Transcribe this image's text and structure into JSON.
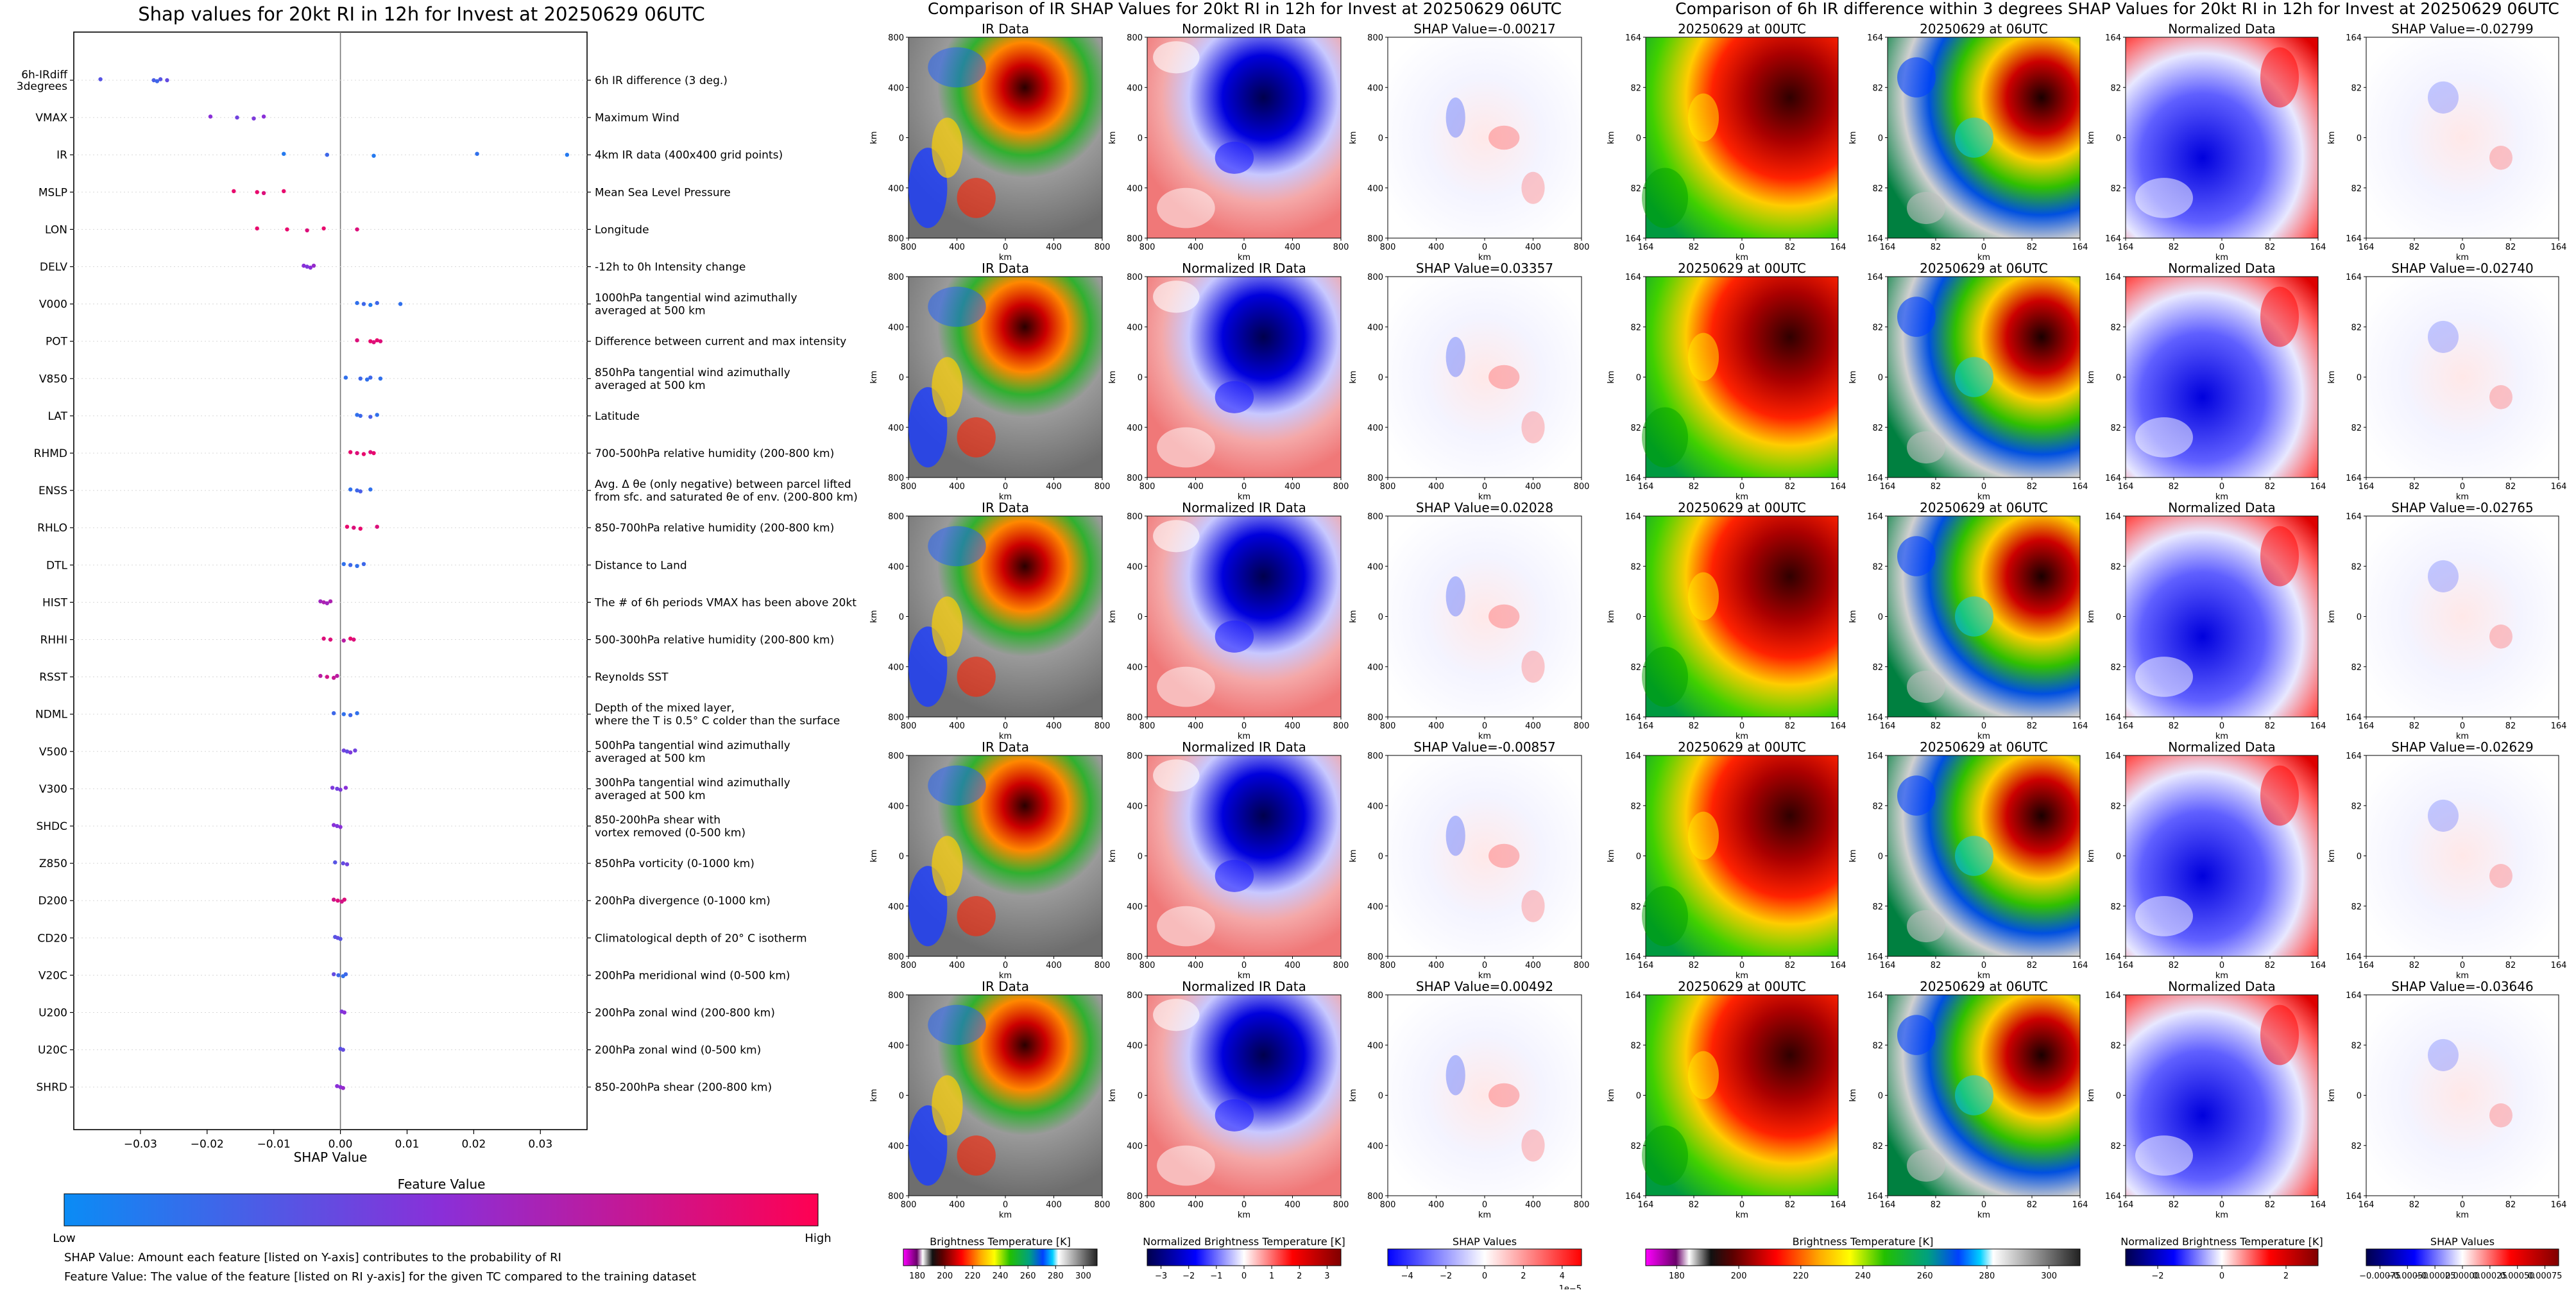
{
  "summary_panel": {
    "title": "Shap values for 20kt RI in 12h for Invest at 20250629 06UTC",
    "colorbar_title": "Feature Value",
    "colorbar_low": "Low",
    "colorbar_high": "High",
    "footnote_1": "SHAP Value: Amount each feature [listed on Y-axis] contributes to the probability of RI",
    "footnote_2": "Feature Value: The value of the feature [listed on RI y-axis] for the given TC compared to the training dataset",
    "colors": {
      "low": "#0a8cf5",
      "mid": "#8a2fd8",
      "high": "#ff0052"
    }
  },
  "ir_section": {
    "title": "Comparison of IR SHAP Values for 20kt RI in 12h for Invest at 20250629 06UTC",
    "col_titles": [
      "IR Data",
      "Normalized IR Data"
    ],
    "shap_titles": [
      "SHAP Value=-0.00217",
      "SHAP Value=0.03357",
      "SHAP Value=0.02028",
      "SHAP Value=-0.00857",
      "SHAP Value=0.00492"
    ],
    "axis_label": "km",
    "x_ticks": [
      "800",
      "400",
      "0",
      "400",
      "800"
    ],
    "y_ticks": [
      "800",
      "400",
      "0",
      "400",
      "800"
    ],
    "colorbars": [
      {
        "label": "Brightness Temperature [K]",
        "ticks": [
          "180",
          "200",
          "220",
          "240",
          "260",
          "280",
          "300"
        ]
      },
      {
        "label": "Normalized Brightness Temperature [K]",
        "ticks": [
          "−3",
          "−2",
          "−1",
          "0",
          "1",
          "2",
          "3"
        ]
      },
      {
        "label": "SHAP Values",
        "ticks": [
          "−4",
          "−2",
          "0",
          "2",
          "4"
        ],
        "exponent": "1e−5"
      }
    ]
  },
  "diff_section": {
    "title": "Comparison of 6h IR difference within 3 degrees SHAP Values for 20kt RI in 12h for Invest at 20250629 06UTC",
    "col_titles": [
      "20250629 at 00UTC",
      "20250629 at 06UTC",
      "Normalized Data"
    ],
    "shap_titles": [
      "SHAP Value=-0.02799",
      "SHAP Value=-0.02740",
      "SHAP Value=-0.02765",
      "SHAP Value=-0.02629",
      "SHAP Value=-0.03646"
    ],
    "axis_label": "km",
    "x_ticks": [
      "164",
      "82",
      "0",
      "82",
      "164"
    ],
    "y_ticks": [
      "164",
      "82",
      "0",
      "82",
      "164"
    ],
    "colorbars": [
      {
        "label": "Brightness Temperature [K]",
        "ticks": [
          "180",
          "200",
          "220",
          "240",
          "260",
          "280",
          "300"
        ]
      },
      {
        "label": "Normalized Brightness Temperature [K]",
        "ticks": [
          "−2",
          "0",
          "2"
        ]
      },
      {
        "label": "SHAP Values",
        "ticks": [
          "−0.00075",
          "−0.00050",
          "−0.00025",
          "0.00000",
          "0.00025",
          "0.00050",
          "0.00075"
        ]
      }
    ]
  },
  "chart_data": [
    {
      "type": "scatter",
      "title": "Shap values for 20kt RI in 12h for Invest at 20250629 06UTC",
      "xlabel": "SHAP Value",
      "ylabel": "",
      "xlim": [
        -0.04,
        0.037
      ],
      "x_ticks": [
        "−0.03",
        "−0.02",
        "−0.01",
        "0.00",
        "0.01",
        "0.02",
        "0.03"
      ],
      "x_tick_values": [
        -0.03,
        -0.02,
        -0.01,
        0.0,
        0.01,
        0.02,
        0.03
      ],
      "features": [
        {
          "name": "6h-IRdiff\n3degrees",
          "desc": "6h IR difference (3 deg.)",
          "points": [
            [
              -0.036,
              0.3
            ],
            [
              -0.028,
              0.25
            ],
            [
              -0.0275,
              0.2
            ],
            [
              -0.027,
              0.3
            ],
            [
              -0.026,
              0.35
            ]
          ]
        },
        {
          "name": "VMAX",
          "desc": "Maximum Wind",
          "points": [
            [
              -0.0195,
              0.5
            ],
            [
              -0.0155,
              0.4
            ],
            [
              -0.013,
              0.45
            ],
            [
              -0.0115,
              0.5
            ]
          ]
        },
        {
          "name": "IR",
          "desc": "4km IR data (400x400 grid points)",
          "points": [
            [
              -0.0085,
              0.1
            ],
            [
              -0.002,
              0.2
            ],
            [
              0.005,
              0.1
            ],
            [
              0.0205,
              0.15
            ],
            [
              0.034,
              0.1
            ]
          ]
        },
        {
          "name": "MSLP",
          "desc": "Mean Sea Level Pressure",
          "points": [
            [
              -0.016,
              0.9
            ],
            [
              -0.0125,
              0.9
            ],
            [
              -0.0115,
              0.85
            ],
            [
              -0.0085,
              0.9
            ]
          ]
        },
        {
          "name": "LON",
          "desc": "Longitude",
          "points": [
            [
              -0.0125,
              0.9
            ],
            [
              -0.008,
              0.9
            ],
            [
              -0.005,
              0.85
            ],
            [
              -0.0025,
              0.9
            ],
            [
              0.0025,
              0.85
            ]
          ]
        },
        {
          "name": "DELV",
          "desc": "-12h to 0h Intensity change",
          "points": [
            [
              -0.0055,
              0.5
            ],
            [
              -0.005,
              0.45
            ],
            [
              -0.0045,
              0.5
            ],
            [
              -0.004,
              0.55
            ]
          ]
        },
        {
          "name": "V000",
          "desc": "1000hPa tangential wind azimuthally\naveraged at 500 km",
          "points": [
            [
              0.0025,
              0.15
            ],
            [
              0.0035,
              0.2
            ],
            [
              0.0045,
              0.1
            ],
            [
              0.0055,
              0.2
            ],
            [
              0.009,
              0.15
            ]
          ]
        },
        {
          "name": "POT",
          "desc": "Difference between current and max intensity",
          "points": [
            [
              0.0025,
              0.85
            ],
            [
              0.0045,
              0.9
            ],
            [
              0.005,
              0.85
            ],
            [
              0.0055,
              0.9
            ],
            [
              0.006,
              0.85
            ]
          ]
        },
        {
          "name": "V850",
          "desc": "850hPa tangential wind azimuthally\naveraged at 500 km",
          "points": [
            [
              0.0008,
              0.15
            ],
            [
              0.003,
              0.2
            ],
            [
              0.004,
              0.15
            ],
            [
              0.0045,
              0.2
            ],
            [
              0.006,
              0.15
            ]
          ]
        },
        {
          "name": "LAT",
          "desc": "Latitude",
          "points": [
            [
              0.0025,
              0.15
            ],
            [
              0.003,
              0.2
            ],
            [
              0.0045,
              0.25
            ],
            [
              0.0055,
              0.15
            ]
          ]
        },
        {
          "name": "RHMD",
          "desc": "700-500hPa relative humidity (200-800 km)",
          "points": [
            [
              0.0015,
              0.9
            ],
            [
              0.0025,
              0.85
            ],
            [
              0.0035,
              0.9
            ],
            [
              0.0045,
              0.85
            ],
            [
              0.005,
              0.9
            ]
          ]
        },
        {
          "name": "ENSS",
          "desc": "Avg. Δ θe (only negative) between parcel lifted\nfrom sfc. and saturated θe of env. (200-800 km)",
          "points": [
            [
              0.0015,
              0.15
            ],
            [
              0.0025,
              0.2
            ],
            [
              0.003,
              0.25
            ],
            [
              0.0045,
              0.15
            ]
          ]
        },
        {
          "name": "RHLO",
          "desc": "850-700hPa relative humidity (200-800 km)",
          "points": [
            [
              0.001,
              0.9
            ],
            [
              0.002,
              0.85
            ],
            [
              0.003,
              0.9
            ],
            [
              0.0055,
              0.85
            ]
          ]
        },
        {
          "name": "DTL",
          "desc": "Distance to Land",
          "points": [
            [
              0.0005,
              0.15
            ],
            [
              0.0015,
              0.2
            ],
            [
              0.0025,
              0.15
            ],
            [
              0.0035,
              0.2
            ]
          ]
        },
        {
          "name": "HIST",
          "desc": "The # of 6h periods VMAX has been above 20kt",
          "points": [
            [
              -0.003,
              0.6
            ],
            [
              -0.0025,
              0.65
            ],
            [
              -0.002,
              0.6
            ],
            [
              -0.0015,
              0.65
            ]
          ]
        },
        {
          "name": "RHHI",
          "desc": "500-300hPa relative humidity (200-800 km)",
          "points": [
            [
              -0.0025,
              0.85
            ],
            [
              -0.0015,
              0.85
            ],
            [
              0.0005,
              0.7
            ],
            [
              0.0015,
              0.9
            ],
            [
              0.002,
              0.85
            ]
          ]
        },
        {
          "name": "RSST",
          "desc": "Reynolds SST",
          "points": [
            [
              -0.003,
              0.7
            ],
            [
              -0.002,
              0.8
            ],
            [
              -0.001,
              0.75
            ],
            [
              -0.0005,
              0.7
            ]
          ]
        },
        {
          "name": "NDML",
          "desc": "Depth of the mixed layer,\nwhere the T is 0.5° C colder than the surface",
          "points": [
            [
              -0.001,
              0.2
            ],
            [
              0.0005,
              0.15
            ],
            [
              0.0015,
              0.2
            ],
            [
              0.0025,
              0.15
            ]
          ]
        },
        {
          "name": "V500",
          "desc": "500hPa tangential wind azimuthally\naveraged at 500 km",
          "points": [
            [
              0.0005,
              0.4
            ],
            [
              0.001,
              0.35
            ],
            [
              0.0015,
              0.45
            ],
            [
              0.0022,
              0.4
            ]
          ]
        },
        {
          "name": "V300",
          "desc": "300hPa tangential wind azimuthally\naveraged at 500 km",
          "points": [
            [
              -0.0012,
              0.45
            ],
            [
              -0.0005,
              0.4
            ],
            [
              0.0,
              0.45
            ],
            [
              0.0008,
              0.5
            ]
          ]
        },
        {
          "name": "SHDC",
          "desc": "850-200hPa shear with\nvortex removed (0-500 km)",
          "points": [
            [
              -0.001,
              0.5
            ],
            [
              -0.0005,
              0.45
            ],
            [
              0.0,
              0.5
            ]
          ]
        },
        {
          "name": "Z850",
          "desc": "850hPa vorticity (0-1000 km)",
          "points": [
            [
              -0.0008,
              0.3
            ],
            [
              0.0004,
              0.35
            ],
            [
              0.001,
              0.4
            ]
          ]
        },
        {
          "name": "D200",
          "desc": "200hPa divergence (0-1000 km)",
          "points": [
            [
              -0.001,
              0.8
            ],
            [
              -0.0004,
              0.85
            ],
            [
              0.0002,
              0.8
            ],
            [
              0.0006,
              0.85
            ]
          ]
        },
        {
          "name": "CD20",
          "desc": "Climatological depth of 20° C isotherm",
          "points": [
            [
              -0.0008,
              0.3
            ],
            [
              -0.0004,
              0.35
            ],
            [
              0.0,
              0.3
            ]
          ]
        },
        {
          "name": "V20C",
          "desc": "200hPa meridional wind (0-500 km)",
          "points": [
            [
              -0.001,
              0.35
            ],
            [
              -0.0003,
              0.2
            ],
            [
              0.0004,
              0.15
            ],
            [
              0.0008,
              0.2
            ]
          ]
        },
        {
          "name": "U200",
          "desc": "200hPa zonal wind (200-800 km)",
          "points": [
            [
              0.0002,
              0.45
            ],
            [
              0.0006,
              0.5
            ]
          ]
        },
        {
          "name": "U20C",
          "desc": "200hPa zonal wind (0-500 km)",
          "points": [
            [
              0.0,
              0.3
            ],
            [
              0.0004,
              0.35
            ]
          ]
        },
        {
          "name": "SHRD",
          "desc": "850-200hPa shear (200-800 km)",
          "points": [
            [
              -0.0005,
              0.5
            ],
            [
              0.0,
              0.5
            ],
            [
              0.0004,
              0.55
            ]
          ]
        }
      ]
    }
  ]
}
